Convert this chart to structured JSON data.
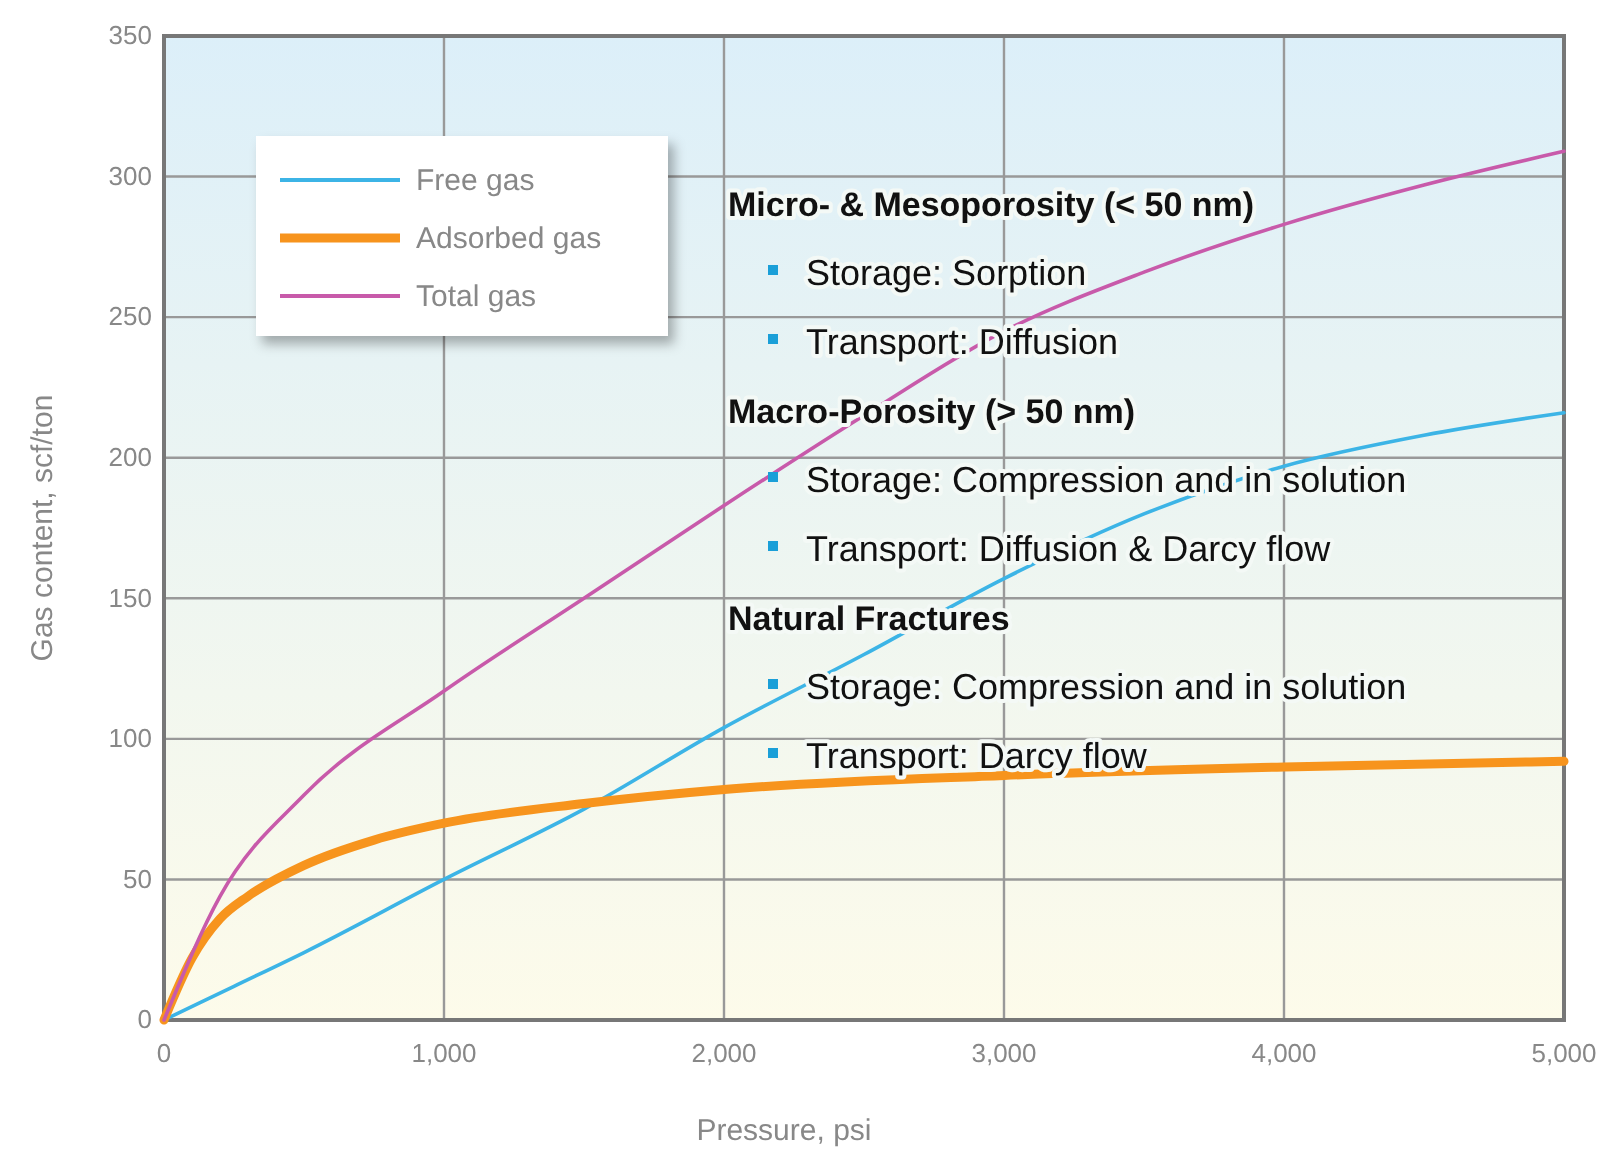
{
  "chart_data": {
    "type": "line",
    "xlabel": "Pressure, psi",
    "ylabel": "Gas content, scf/ton",
    "xlim": [
      0,
      5000
    ],
    "xticks": [
      {
        "value": 0,
        "label": "0"
      },
      {
        "value": 1000,
        "label": "1,000"
      },
      {
        "value": 2000,
        "label": "2,000"
      },
      {
        "value": 3000,
        "label": "3,000"
      },
      {
        "value": 4000,
        "label": "4,000"
      },
      {
        "value": 5000,
        "label": "5,000"
      }
    ],
    "ylim": [
      0,
      350
    ],
    "yticks": [
      0,
      50,
      100,
      150,
      200,
      250,
      300,
      350
    ],
    "grid": true,
    "legend": "top left",
    "series": [
      {
        "name": "Free gas",
        "color": "#3cb4e6",
        "x": [
          0,
          250,
          500,
          1000,
          1500,
          2000,
          2500,
          3000,
          3500,
          4000,
          4500,
          5000
        ],
        "values": [
          0,
          12,
          24,
          50,
          75,
          104,
          130,
          157,
          180,
          197,
          208,
          216
        ]
      },
      {
        "name": "Adsorbed gas",
        "color": "#f7941d",
        "x": [
          0,
          100,
          200,
          300,
          500,
          750,
          1000,
          1500,
          2000,
          3000,
          4000,
          5000
        ],
        "values": [
          0,
          22,
          36,
          44,
          55,
          64,
          70,
          77,
          82,
          87,
          90,
          92
        ]
      },
      {
        "name": "Total gas",
        "color": "#c85aaa",
        "x": [
          0,
          200,
          500,
          1000,
          1500,
          2000,
          2500,
          3000,
          3500,
          4000,
          4500,
          5000
        ],
        "values": [
          0,
          44,
          80,
          117,
          150,
          183,
          215,
          245,
          266,
          283,
          297,
          309
        ]
      }
    ],
    "annotations": [
      "Micro- & Mesoporosity (< 50 nm)",
      "Storage: Sorption",
      "Transport: Diffusion",
      "Macro-Porosity (> 50 nm)",
      "Storage: Compression and in solution",
      "Transport: Diffusion & Darcy flow",
      "Natural Fractures",
      "Storage: Compression and in solution",
      "Transport: Darcy flow"
    ]
  }
}
